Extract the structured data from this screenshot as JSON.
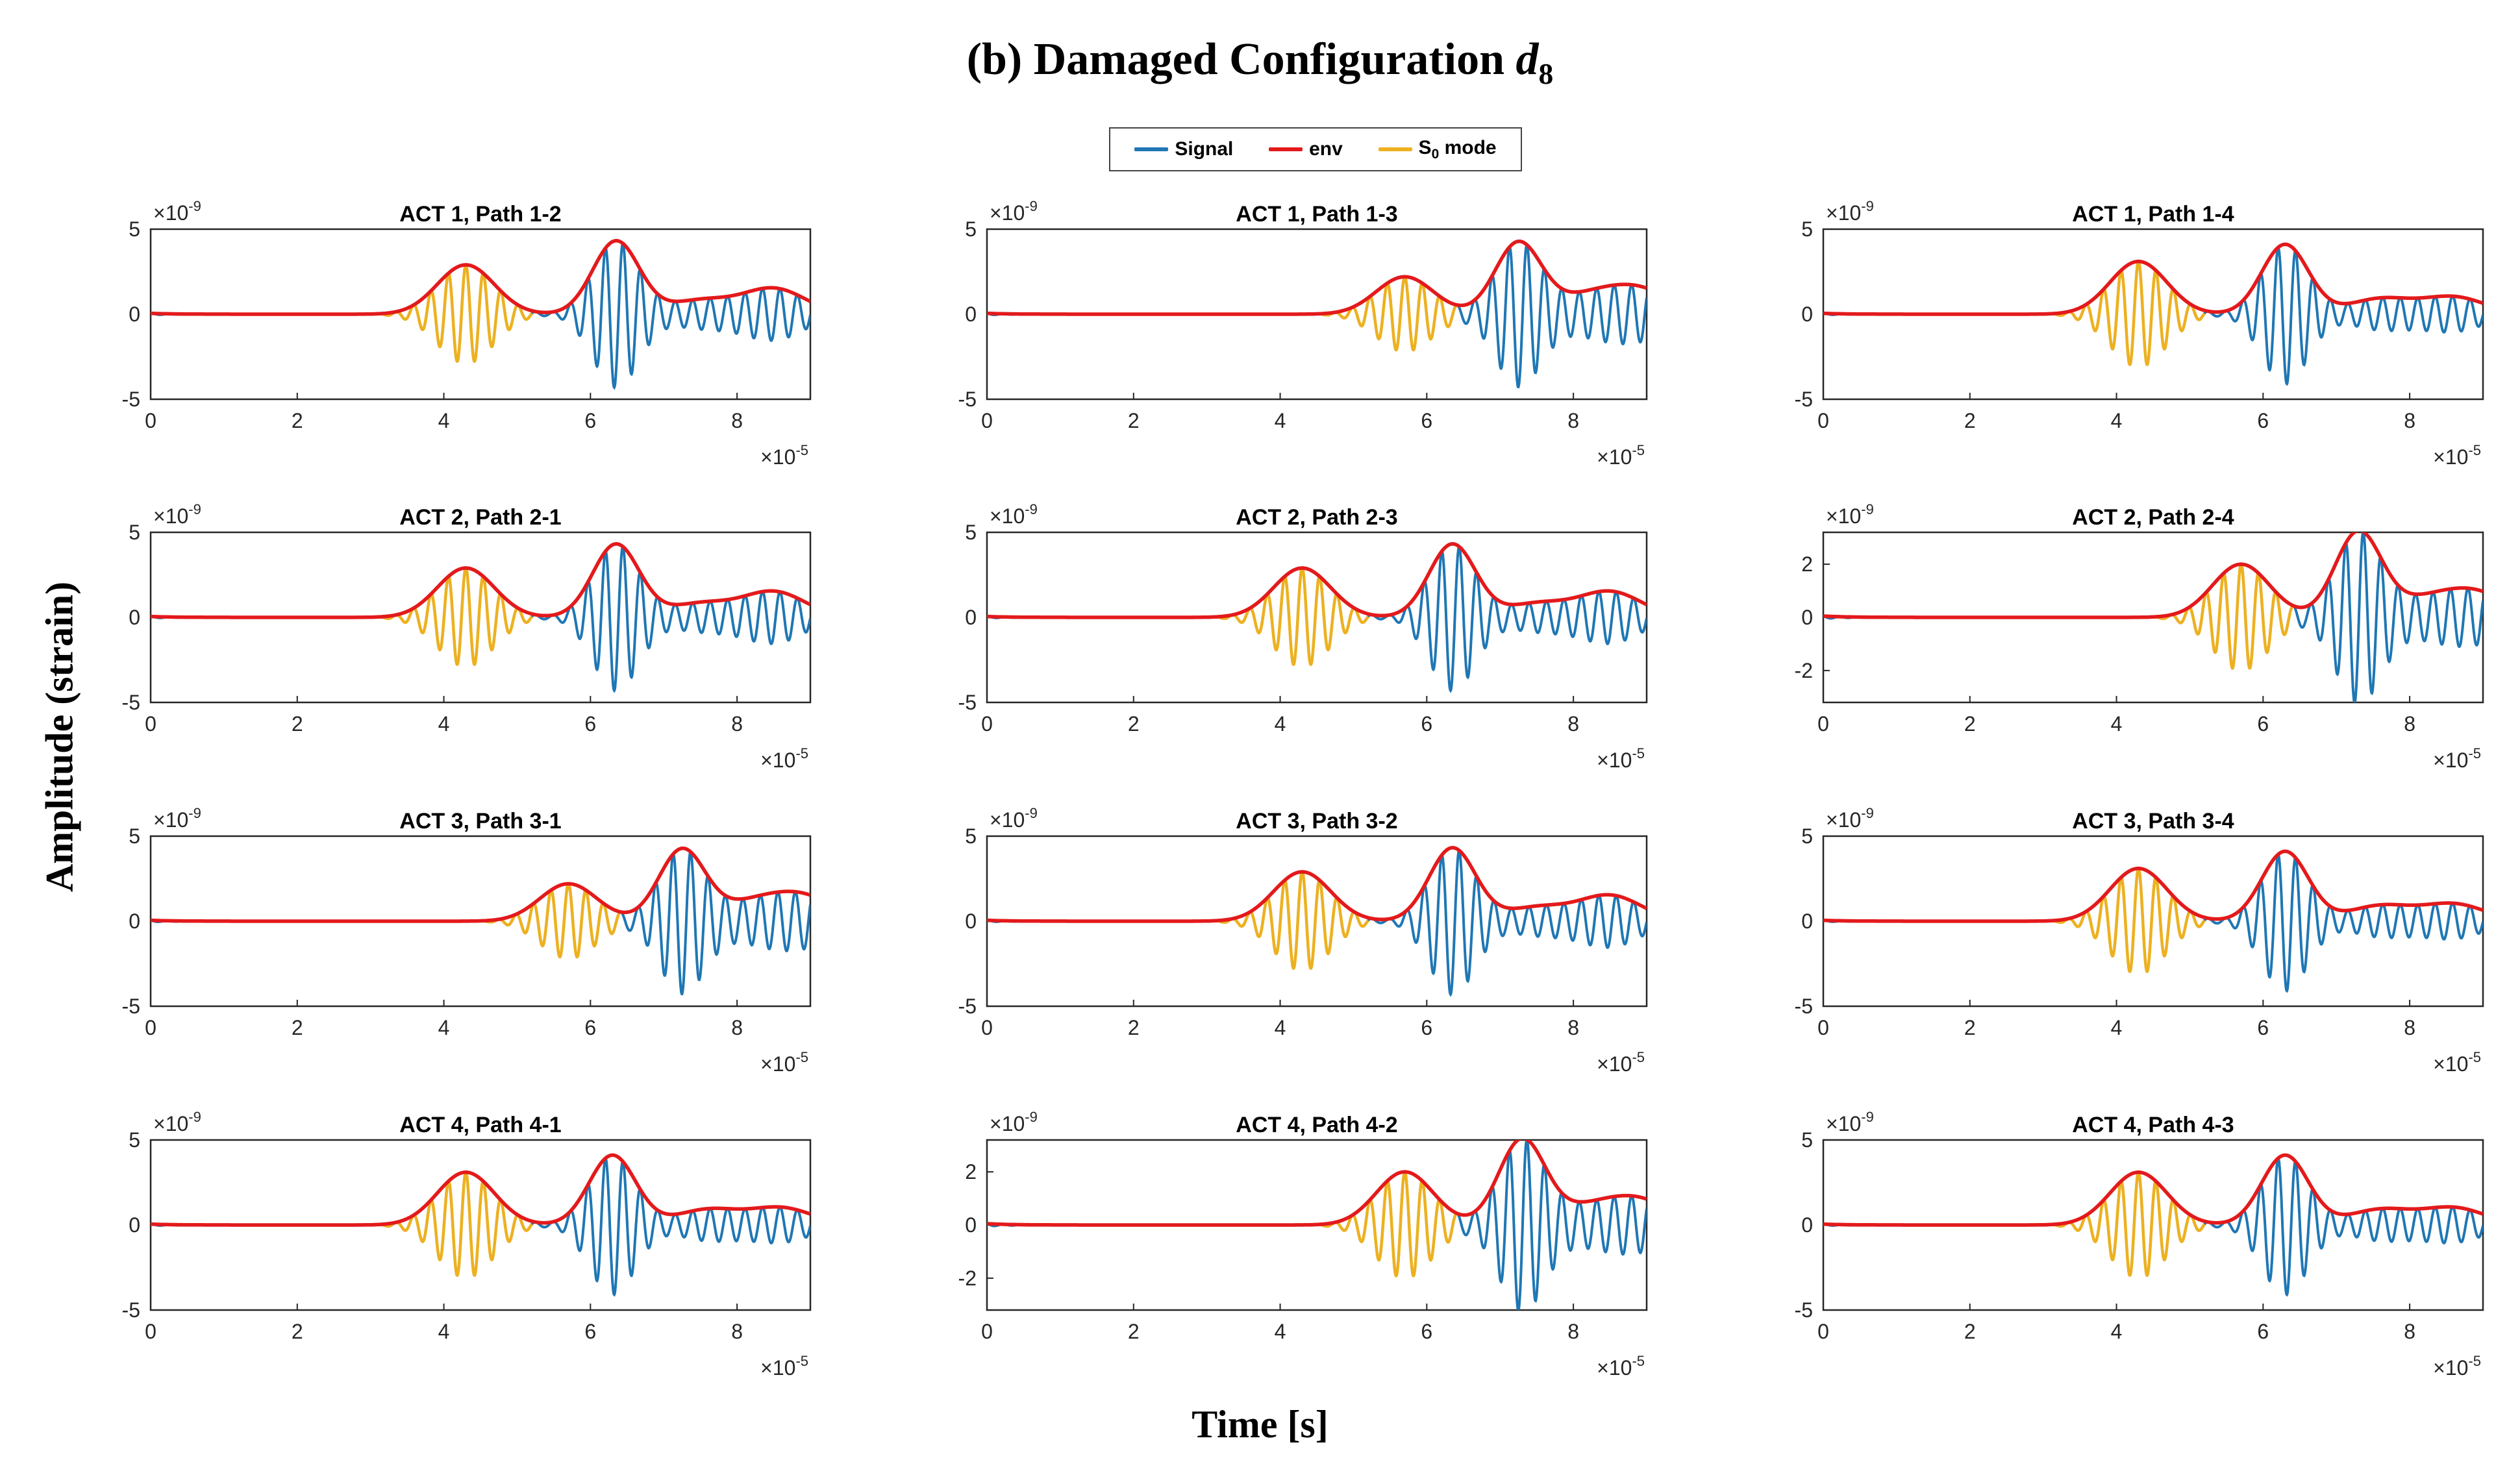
{
  "figure": {
    "title": "(b) Damaged Configuration",
    "title_symbol": "d",
    "title_subscript": "8",
    "ylabel": "Amplitude (strain)",
    "xlabel": "Time [s]"
  },
  "legend": {
    "items": [
      {
        "label": "Signal",
        "color": "#1f77b4"
      },
      {
        "label": "env",
        "color": "#e31a1c"
      },
      {
        "label": "S",
        "subscript": "0",
        "suffix": " mode",
        "color": "#edb120"
      }
    ]
  },
  "chart_data": [
    {
      "type": "line",
      "title": "ACT 1, Path 1-2",
      "xlim": [
        0,
        9
      ],
      "x_exponent": "×10",
      "x_exponent_power": "-5",
      "xticks": [
        0,
        2,
        4,
        6,
        8
      ],
      "ylim": [
        -5,
        5
      ],
      "yticks": [
        -5,
        0,
        5
      ],
      "y_exponent": "×10",
      "y_exponent_power": "-9",
      "s0_start": 3.0,
      "s0_end": 5.2,
      "packets": [
        {
          "center": 4.3,
          "amp": 2.9,
          "width": 0.55
        },
        {
          "center": 6.35,
          "amp": 4.3,
          "width": 0.45
        }
      ],
      "tail": [
        {
          "center": 7.5,
          "amp": 0.8
        },
        {
          "center": 8.5,
          "amp": 1.5
        }
      ]
    },
    {
      "type": "line",
      "title": "ACT 1, Path 1-3",
      "xlim": [
        0,
        9
      ],
      "x_exponent": "×10",
      "x_exponent_power": "-5",
      "xticks": [
        0,
        2,
        4,
        6,
        8
      ],
      "ylim": [
        -5,
        5
      ],
      "yticks": [
        -5,
        0,
        5
      ],
      "y_exponent": "×10",
      "y_exponent_power": "-9",
      "s0_start": 4.5,
      "s0_end": 6.4,
      "packets": [
        {
          "center": 5.7,
          "amp": 2.2,
          "width": 0.55
        },
        {
          "center": 7.25,
          "amp": 4.2,
          "width": 0.45
        }
      ],
      "tail": [
        {
          "center": 8.2,
          "amp": 1.0
        },
        {
          "center": 8.9,
          "amp": 1.4
        }
      ]
    },
    {
      "type": "line",
      "title": "ACT 1, Path 1-4",
      "xlim": [
        0,
        9
      ],
      "x_exponent": "×10",
      "x_exponent_power": "-5",
      "xticks": [
        0,
        2,
        4,
        6,
        8
      ],
      "ylim": [
        -5,
        5
      ],
      "yticks": [
        -5,
        0,
        5
      ],
      "y_exponent": "×10",
      "y_exponent_power": "-9",
      "s0_start": 3.0,
      "s0_end": 5.2,
      "packets": [
        {
          "center": 4.3,
          "amp": 3.1,
          "width": 0.55
        },
        {
          "center": 6.3,
          "amp": 4.1,
          "width": 0.45
        }
      ],
      "tail": [
        {
          "center": 7.6,
          "amp": 0.9
        },
        {
          "center": 8.6,
          "amp": 1.0
        }
      ]
    },
    {
      "type": "line",
      "title": "ACT 2, Path 2-1",
      "xlim": [
        0,
        9
      ],
      "x_exponent": "×10",
      "x_exponent_power": "-5",
      "xticks": [
        0,
        2,
        4,
        6,
        8
      ],
      "ylim": [
        -5,
        5
      ],
      "yticks": [
        -5,
        0,
        5
      ],
      "y_exponent": "×10",
      "y_exponent_power": "-9",
      "s0_start": 3.0,
      "s0_end": 5.2,
      "packets": [
        {
          "center": 4.3,
          "amp": 2.9,
          "width": 0.55
        },
        {
          "center": 6.35,
          "amp": 4.3,
          "width": 0.45
        }
      ],
      "tail": [
        {
          "center": 7.5,
          "amp": 0.8
        },
        {
          "center": 8.5,
          "amp": 1.5
        }
      ]
    },
    {
      "type": "line",
      "title": "ACT 2, Path 2-3",
      "xlim": [
        0,
        9
      ],
      "x_exponent": "×10",
      "x_exponent_power": "-5",
      "xticks": [
        0,
        2,
        4,
        6,
        8
      ],
      "ylim": [
        -5,
        5
      ],
      "yticks": [
        -5,
        0,
        5
      ],
      "y_exponent": "×10",
      "y_exponent_power": "-9",
      "s0_start": 3.0,
      "s0_end": 5.2,
      "packets": [
        {
          "center": 4.3,
          "amp": 2.9,
          "width": 0.55
        },
        {
          "center": 6.35,
          "amp": 4.3,
          "width": 0.45
        }
      ],
      "tail": [
        {
          "center": 7.5,
          "amp": 0.8
        },
        {
          "center": 8.5,
          "amp": 1.5
        }
      ]
    },
    {
      "type": "line",
      "title": "ACT 2, Path 2-4",
      "xlim": [
        0,
        9
      ],
      "x_exponent": "×10",
      "x_exponent_power": "-5",
      "xticks": [
        0,
        2,
        4,
        6,
        8
      ],
      "ylim": [
        -3.2,
        3.2
      ],
      "yticks": [
        -2,
        0,
        2
      ],
      "y_exponent": "×10",
      "y_exponent_power": "-9",
      "s0_start": 4.5,
      "s0_end": 6.4,
      "packets": [
        {
          "center": 5.7,
          "amp": 2.0,
          "width": 0.55
        },
        {
          "center": 7.3,
          "amp": 3.2,
          "width": 0.45
        }
      ],
      "tail": [
        {
          "center": 8.2,
          "amp": 0.6
        },
        {
          "center": 8.9,
          "amp": 0.9
        }
      ]
    },
    {
      "type": "line",
      "title": "ACT 3, Path 3-1",
      "xlim": [
        0,
        9
      ],
      "x_exponent": "×10",
      "x_exponent_power": "-5",
      "xticks": [
        0,
        2,
        4,
        6,
        8
      ],
      "ylim": [
        -5,
        5
      ],
      "yticks": [
        -5,
        0,
        5
      ],
      "y_exponent": "×10",
      "y_exponent_power": "-9",
      "s0_start": 4.5,
      "s0_end": 6.4,
      "packets": [
        {
          "center": 5.7,
          "amp": 2.2,
          "width": 0.55
        },
        {
          "center": 7.25,
          "amp": 4.2,
          "width": 0.45
        }
      ],
      "tail": [
        {
          "center": 8.2,
          "amp": 1.0
        },
        {
          "center": 8.9,
          "amp": 1.4
        }
      ]
    },
    {
      "type": "line",
      "title": "ACT 3, Path 3-2",
      "xlim": [
        0,
        9
      ],
      "x_exponent": "×10",
      "x_exponent_power": "-5",
      "xticks": [
        0,
        2,
        4,
        6,
        8
      ],
      "ylim": [
        -5,
        5
      ],
      "yticks": [
        -5,
        0,
        5
      ],
      "y_exponent": "×10",
      "y_exponent_power": "-9",
      "s0_start": 3.0,
      "s0_end": 5.2,
      "packets": [
        {
          "center": 4.3,
          "amp": 2.9,
          "width": 0.55
        },
        {
          "center": 6.35,
          "amp": 4.3,
          "width": 0.45
        }
      ],
      "tail": [
        {
          "center": 7.5,
          "amp": 0.8
        },
        {
          "center": 8.5,
          "amp": 1.5
        }
      ]
    },
    {
      "type": "line",
      "title": "ACT 3, Path 3-4",
      "xlim": [
        0,
        9
      ],
      "x_exponent": "×10",
      "x_exponent_power": "-5",
      "xticks": [
        0,
        2,
        4,
        6,
        8
      ],
      "ylim": [
        -5,
        5
      ],
      "yticks": [
        -5,
        0,
        5
      ],
      "y_exponent": "×10",
      "y_exponent_power": "-9",
      "s0_start": 3.0,
      "s0_end": 5.2,
      "packets": [
        {
          "center": 4.3,
          "amp": 3.1,
          "width": 0.55
        },
        {
          "center": 6.3,
          "amp": 4.1,
          "width": 0.45
        }
      ],
      "tail": [
        {
          "center": 7.6,
          "amp": 0.9
        },
        {
          "center": 8.6,
          "amp": 1.0
        }
      ]
    },
    {
      "type": "line",
      "title": "ACT 4, Path 4-1",
      "xlim": [
        0,
        9
      ],
      "x_exponent": "×10",
      "x_exponent_power": "-5",
      "xticks": [
        0,
        2,
        4,
        6,
        8
      ],
      "ylim": [
        -5,
        5
      ],
      "yticks": [
        -5,
        0,
        5
      ],
      "y_exponent": "×10",
      "y_exponent_power": "-9",
      "s0_start": 3.0,
      "s0_end": 5.2,
      "packets": [
        {
          "center": 4.3,
          "amp": 3.1,
          "width": 0.55
        },
        {
          "center": 6.3,
          "amp": 4.1,
          "width": 0.45
        }
      ],
      "tail": [
        {
          "center": 7.6,
          "amp": 0.9
        },
        {
          "center": 8.6,
          "amp": 1.0
        }
      ]
    },
    {
      "type": "line",
      "title": "ACT 4, Path 4-2",
      "xlim": [
        0,
        9
      ],
      "x_exponent": "×10",
      "x_exponent_power": "-5",
      "xticks": [
        0,
        2,
        4,
        6,
        8
      ],
      "ylim": [
        -3.2,
        3.2
      ],
      "yticks": [
        -2,
        0,
        2
      ],
      "y_exponent": "×10",
      "y_exponent_power": "-9",
      "s0_start": 4.5,
      "s0_end": 6.4,
      "packets": [
        {
          "center": 5.7,
          "amp": 2.0,
          "width": 0.55
        },
        {
          "center": 7.3,
          "amp": 3.2,
          "width": 0.45
        }
      ],
      "tail": [
        {
          "center": 8.2,
          "amp": 0.6
        },
        {
          "center": 8.9,
          "amp": 0.9
        }
      ]
    },
    {
      "type": "line",
      "title": "ACT 4, Path 4-3",
      "xlim": [
        0,
        9
      ],
      "x_exponent": "×10",
      "x_exponent_power": "-5",
      "xticks": [
        0,
        2,
        4,
        6,
        8
      ],
      "ylim": [
        -5,
        5
      ],
      "yticks": [
        -5,
        0,
        5
      ],
      "y_exponent": "×10",
      "y_exponent_power": "-9",
      "s0_start": 3.0,
      "s0_end": 5.2,
      "packets": [
        {
          "center": 4.3,
          "amp": 3.1,
          "width": 0.55
        },
        {
          "center": 6.3,
          "amp": 4.1,
          "width": 0.45
        }
      ],
      "tail": [
        {
          "center": 7.6,
          "amp": 0.9
        },
        {
          "center": 8.6,
          "amp": 1.0
        }
      ]
    }
  ]
}
